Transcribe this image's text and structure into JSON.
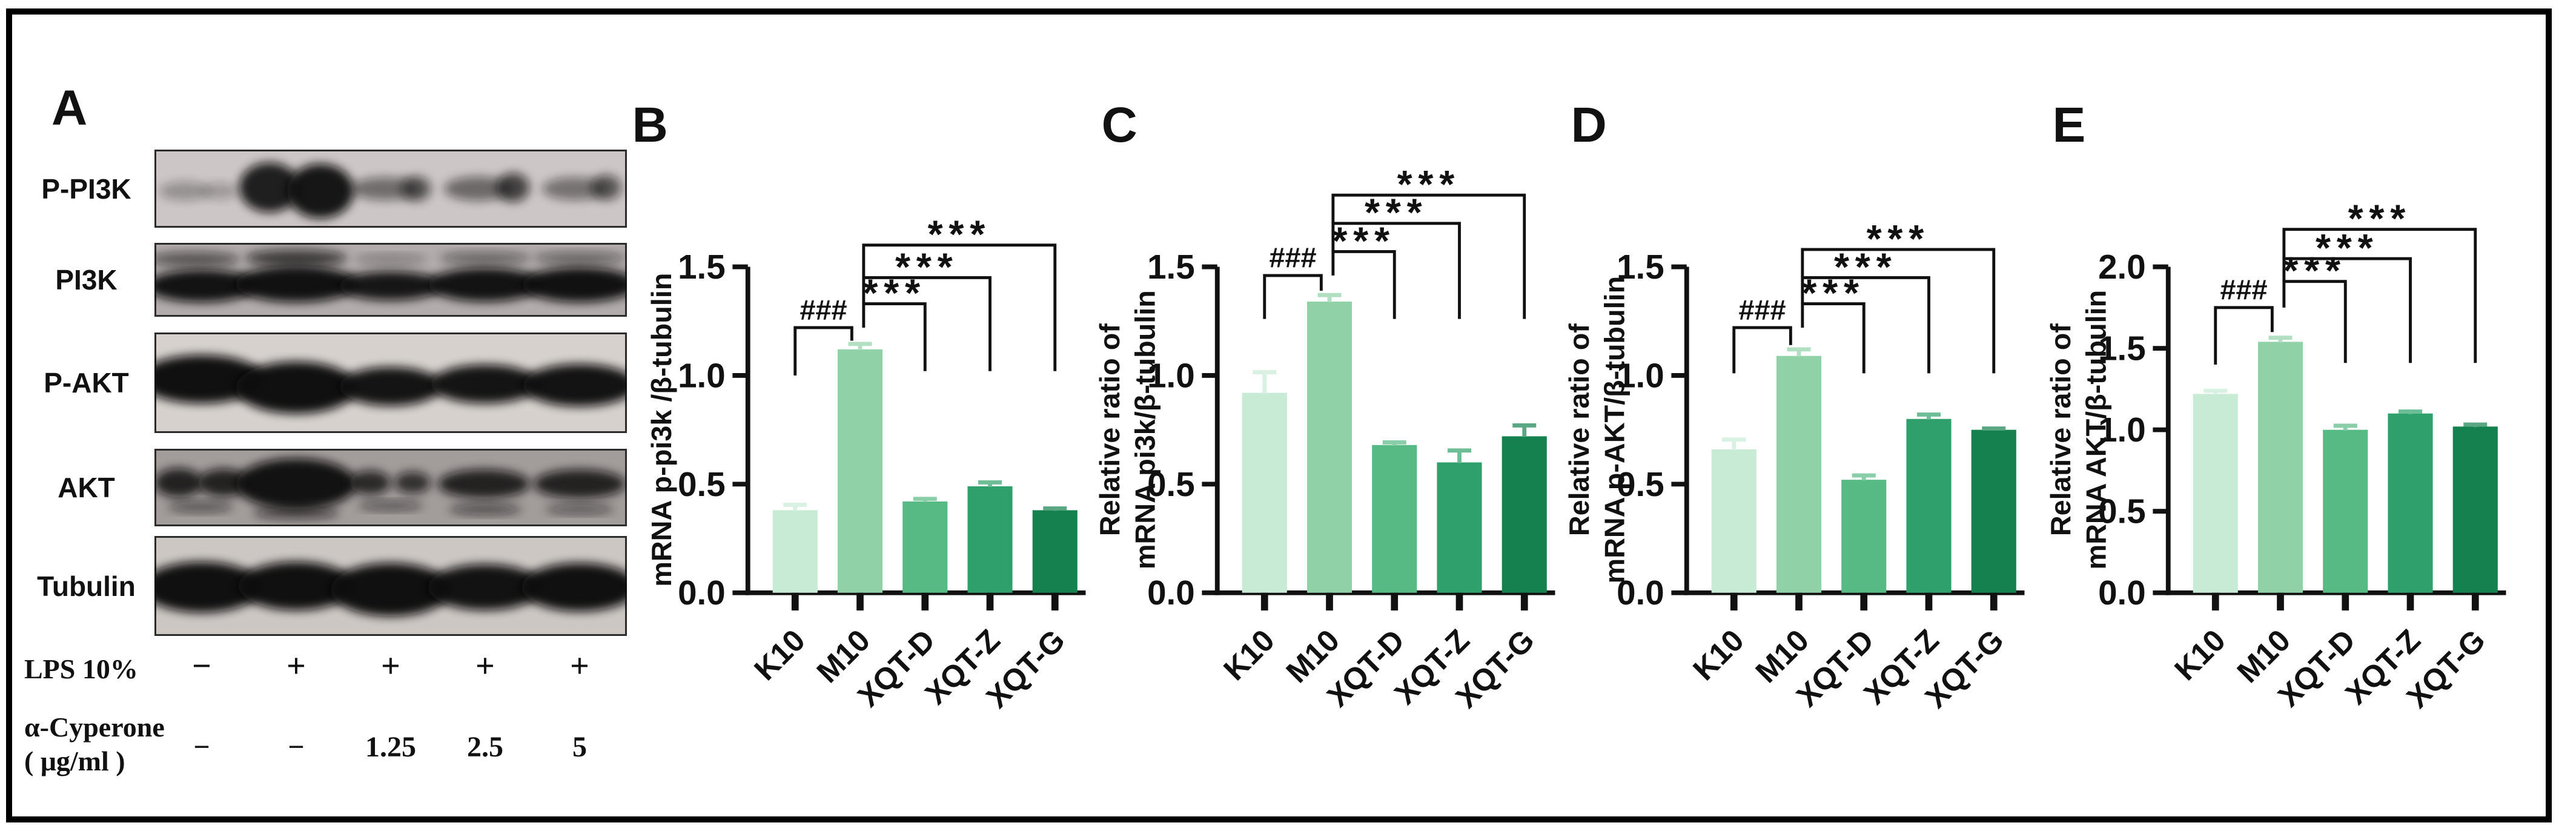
{
  "style": {
    "bar_colors": [
      "#c8ebd6",
      "#90d1a8",
      "#57b983",
      "#2fa06b",
      "#15814f"
    ],
    "axis_color": "#111111",
    "background": "#ffffff"
  },
  "panel_a": {
    "label": "A",
    "blot_rows": [
      {
        "label": "P-PI3K",
        "h": 129,
        "bg": "#cdc6c6",
        "bands": [
          [
            0,
            -28,
            4,
            85,
            32,
            0.28
          ],
          [
            0,
            30,
            4,
            58,
            28,
            0.24
          ],
          [
            1,
            -44,
            -2,
            100,
            82,
            0.9
          ],
          [
            1,
            40,
            4,
            110,
            90,
            0.95
          ],
          [
            2,
            -8,
            0,
            118,
            38,
            0.48
          ],
          [
            2,
            42,
            0,
            50,
            42,
            0.55
          ],
          [
            3,
            -12,
            0,
            112,
            40,
            0.5
          ],
          [
            3,
            46,
            -2,
            54,
            48,
            0.7
          ],
          [
            4,
            -8,
            0,
            108,
            38,
            0.45
          ],
          [
            4,
            44,
            -2,
            50,
            42,
            0.58
          ]
        ]
      },
      {
        "label": "PI3K",
        "h": 122,
        "bg": "#b3acac",
        "bands": [
          [
            0,
            -12,
            -34,
            150,
            24,
            0.55
          ],
          [
            1,
            0,
            -36,
            168,
            28,
            0.7
          ],
          [
            2,
            0,
            -34,
            120,
            16,
            0.3
          ],
          [
            3,
            0,
            -36,
            150,
            20,
            0.45
          ],
          [
            4,
            0,
            -36,
            152,
            20,
            0.45
          ],
          [
            0,
            0,
            10,
            182,
            54,
            0.96
          ],
          [
            1,
            0,
            7,
            202,
            60,
            0.97
          ],
          [
            2,
            0,
            10,
            172,
            48,
            0.94
          ],
          [
            3,
            0,
            8,
            188,
            56,
            0.96
          ],
          [
            4,
            0,
            8,
            190,
            58,
            0.97
          ]
        ]
      },
      {
        "label": "P-AKT",
        "h": 166,
        "bg": "#d6d1cd",
        "bands": [
          [
            0,
            0,
            -6,
            208,
            80,
            0.98
          ],
          [
            1,
            0,
            8,
            200,
            86,
            0.98
          ],
          [
            2,
            0,
            6,
            170,
            64,
            0.96
          ],
          [
            3,
            0,
            2,
            180,
            64,
            0.96
          ],
          [
            4,
            0,
            4,
            188,
            70,
            0.97
          ]
        ]
      },
      {
        "label": "AKT",
        "h": 128,
        "bg": "#a29c9a",
        "bands": [
          [
            0,
            -38,
            -8,
            80,
            48,
            0.85
          ],
          [
            0,
            36,
            -8,
            84,
            46,
            0.85
          ],
          [
            0,
            -2,
            32,
            108,
            18,
            0.5
          ],
          [
            1,
            0,
            -6,
            198,
            84,
            0.96
          ],
          [
            1,
            0,
            42,
            142,
            20,
            0.6
          ],
          [
            2,
            -34,
            -8,
            68,
            40,
            0.8
          ],
          [
            2,
            36,
            -8,
            60,
            36,
            0.75
          ],
          [
            2,
            0,
            30,
            108,
            16,
            0.5
          ],
          [
            3,
            -2,
            -6,
            152,
            48,
            0.85
          ],
          [
            3,
            0,
            36,
            120,
            18,
            0.55
          ],
          [
            4,
            0,
            -6,
            152,
            48,
            0.85
          ],
          [
            4,
            0,
            36,
            114,
            16,
            0.5
          ]
        ]
      },
      {
        "label": "Tubulin",
        "h": 165,
        "bg": "#ccc7c3",
        "bands": [
          [
            0,
            0,
            2,
            198,
            84,
            0.98
          ],
          [
            1,
            0,
            0,
            192,
            80,
            0.98
          ],
          [
            2,
            0,
            6,
            198,
            88,
            0.98
          ],
          [
            3,
            0,
            2,
            190,
            76,
            0.97
          ],
          [
            4,
            0,
            2,
            192,
            80,
            0.98
          ]
        ]
      }
    ],
    "conditions": [
      {
        "label": "LPS 10%",
        "values": [
          "−",
          "+",
          "+",
          "+",
          "+"
        ]
      },
      {
        "label": "α-Cyperone",
        "label2": "( μg/ml )",
        "values": [
          "−",
          "−",
          "1.25",
          "2.5",
          "5"
        ]
      }
    ]
  },
  "chart_data": [
    {
      "type": "bar",
      "panel": "B",
      "title": "",
      "ylabel_lines": [
        "mRNA p-pi3k /β-tubulin"
      ],
      "xlabel": "",
      "categories": [
        "K10",
        "M10",
        "XQT-D",
        "XQT-Z",
        "XQT-G"
      ],
      "values": [
        0.38,
        1.12,
        0.42,
        0.49,
        0.38
      ],
      "errors": [
        0.025,
        0.025,
        0.012,
        0.018,
        0.008
      ],
      "ylim": [
        0,
        1.5
      ],
      "yticks": [
        0,
        0.5,
        1.0,
        1.5
      ],
      "grid": false,
      "legend": null,
      "brackets": [
        {
          "label": "###",
          "x1": 0,
          "x2": 1,
          "dx1": 0,
          "dx2": -14,
          "y": 1.22,
          "y1end": 1.0,
          "y2end": 1.16
        },
        {
          "label": "***",
          "x1": 1,
          "x2": 2,
          "dx1": 6,
          "dx2": 0,
          "y": 1.33,
          "y1end": 1.22,
          "y2end": 1.02
        },
        {
          "label": "***",
          "x1": 1,
          "x2": 3,
          "dx1": 6,
          "dx2": 0,
          "y": 1.45,
          "y1end": 1.33,
          "y2end": 1.02
        },
        {
          "label": "***",
          "x1": 1,
          "x2": 4,
          "dx1": 6,
          "dx2": 0,
          "y": 1.6,
          "y1end": 1.45,
          "y2end": 1.02
        }
      ]
    },
    {
      "type": "bar",
      "panel": "C",
      "title": "",
      "ylabel_lines": [
        "Relative ratio of",
        "mRNA pi3k/β-tubulin"
      ],
      "xlabel": "",
      "categories": [
        "K10",
        "M10",
        "XQT-D",
        "XQT-Z",
        "XQT-G"
      ],
      "values": [
        0.92,
        1.34,
        0.68,
        0.6,
        0.72
      ],
      "errors": [
        0.095,
        0.03,
        0.012,
        0.055,
        0.05
      ],
      "ylim": [
        0,
        1.5
      ],
      "yticks": [
        0,
        0.5,
        1.0,
        1.5
      ],
      "grid": false,
      "legend": null,
      "brackets": [
        {
          "label": "###",
          "x1": 0,
          "x2": 1,
          "dx1": 0,
          "dx2": -14,
          "y": 1.46,
          "y1end": 1.26,
          "y2end": 1.39
        },
        {
          "label": "***",
          "x1": 1,
          "x2": 2,
          "dx1": 6,
          "dx2": 0,
          "y": 1.57,
          "y1end": 1.46,
          "y2end": 1.26
        },
        {
          "label": "***",
          "x1": 1,
          "x2": 3,
          "dx1": 6,
          "dx2": 0,
          "y": 1.7,
          "y1end": 1.57,
          "y2end": 1.26
        },
        {
          "label": "***",
          "x1": 1,
          "x2": 4,
          "dx1": 6,
          "dx2": 0,
          "y": 1.83,
          "y1end": 1.7,
          "y2end": 1.26
        }
      ]
    },
    {
      "type": "bar",
      "panel": "D",
      "title": "",
      "ylabel_lines": [
        "Relative ratio of",
        "mRNA p-AKT/β-tubulin"
      ],
      "xlabel": "",
      "categories": [
        "K10",
        "M10",
        "XQT-D",
        "XQT-Z",
        "XQT-G"
      ],
      "values": [
        0.66,
        1.09,
        0.52,
        0.8,
        0.75
      ],
      "errors": [
        0.045,
        0.03,
        0.02,
        0.02,
        0.006
      ],
      "ylim": [
        0,
        1.5
      ],
      "yticks": [
        0,
        0.5,
        1.0,
        1.5
      ],
      "grid": false,
      "legend": null,
      "brackets": [
        {
          "label": "###",
          "x1": 0,
          "x2": 1,
          "dx1": 0,
          "dx2": -14,
          "y": 1.22,
          "y1end": 1.01,
          "y2end": 1.14
        },
        {
          "label": "***",
          "x1": 1,
          "x2": 2,
          "dx1": 6,
          "dx2": 0,
          "y": 1.33,
          "y1end": 1.22,
          "y2end": 1.01
        },
        {
          "label": "***",
          "x1": 1,
          "x2": 3,
          "dx1": 6,
          "dx2": 0,
          "y": 1.45,
          "y1end": 1.33,
          "y2end": 1.01
        },
        {
          "label": "***",
          "x1": 1,
          "x2": 4,
          "dx1": 6,
          "dx2": 0,
          "y": 1.58,
          "y1end": 1.45,
          "y2end": 1.01
        }
      ]
    },
    {
      "type": "bar",
      "panel": "E",
      "title": "",
      "ylabel_lines": [
        "Relative ratio of",
        "mRNA AKT/β-tubulin"
      ],
      "xlabel": "",
      "categories": [
        "K10",
        "M10",
        "XQT-D",
        "XQT-Z",
        "XQT-G"
      ],
      "values": [
        1.22,
        1.54,
        1.0,
        1.1,
        1.02
      ],
      "errors": [
        0.02,
        0.025,
        0.025,
        0.012,
        0.012
      ],
      "ylim": [
        0,
        2.0
      ],
      "yticks": [
        0,
        0.5,
        1.0,
        1.5,
        2.0
      ],
      "grid": false,
      "legend": null,
      "brackets": [
        {
          "label": "###",
          "x1": 0,
          "x2": 1,
          "dx1": 0,
          "dx2": -14,
          "y": 1.75,
          "y1end": 1.4,
          "y2end": 1.6
        },
        {
          "label": "***",
          "x1": 1,
          "x2": 2,
          "dx1": 6,
          "dx2": 0,
          "y": 1.91,
          "y1end": 1.75,
          "y2end": 1.41
        },
        {
          "label": "***",
          "x1": 1,
          "x2": 3,
          "dx1": 6,
          "dx2": 0,
          "y": 2.05,
          "y1end": 1.91,
          "y2end": 1.41
        },
        {
          "label": "***",
          "x1": 1,
          "x2": 4,
          "dx1": 6,
          "dx2": 0,
          "y": 2.23,
          "y1end": 2.05,
          "y2end": 1.41
        }
      ]
    }
  ]
}
